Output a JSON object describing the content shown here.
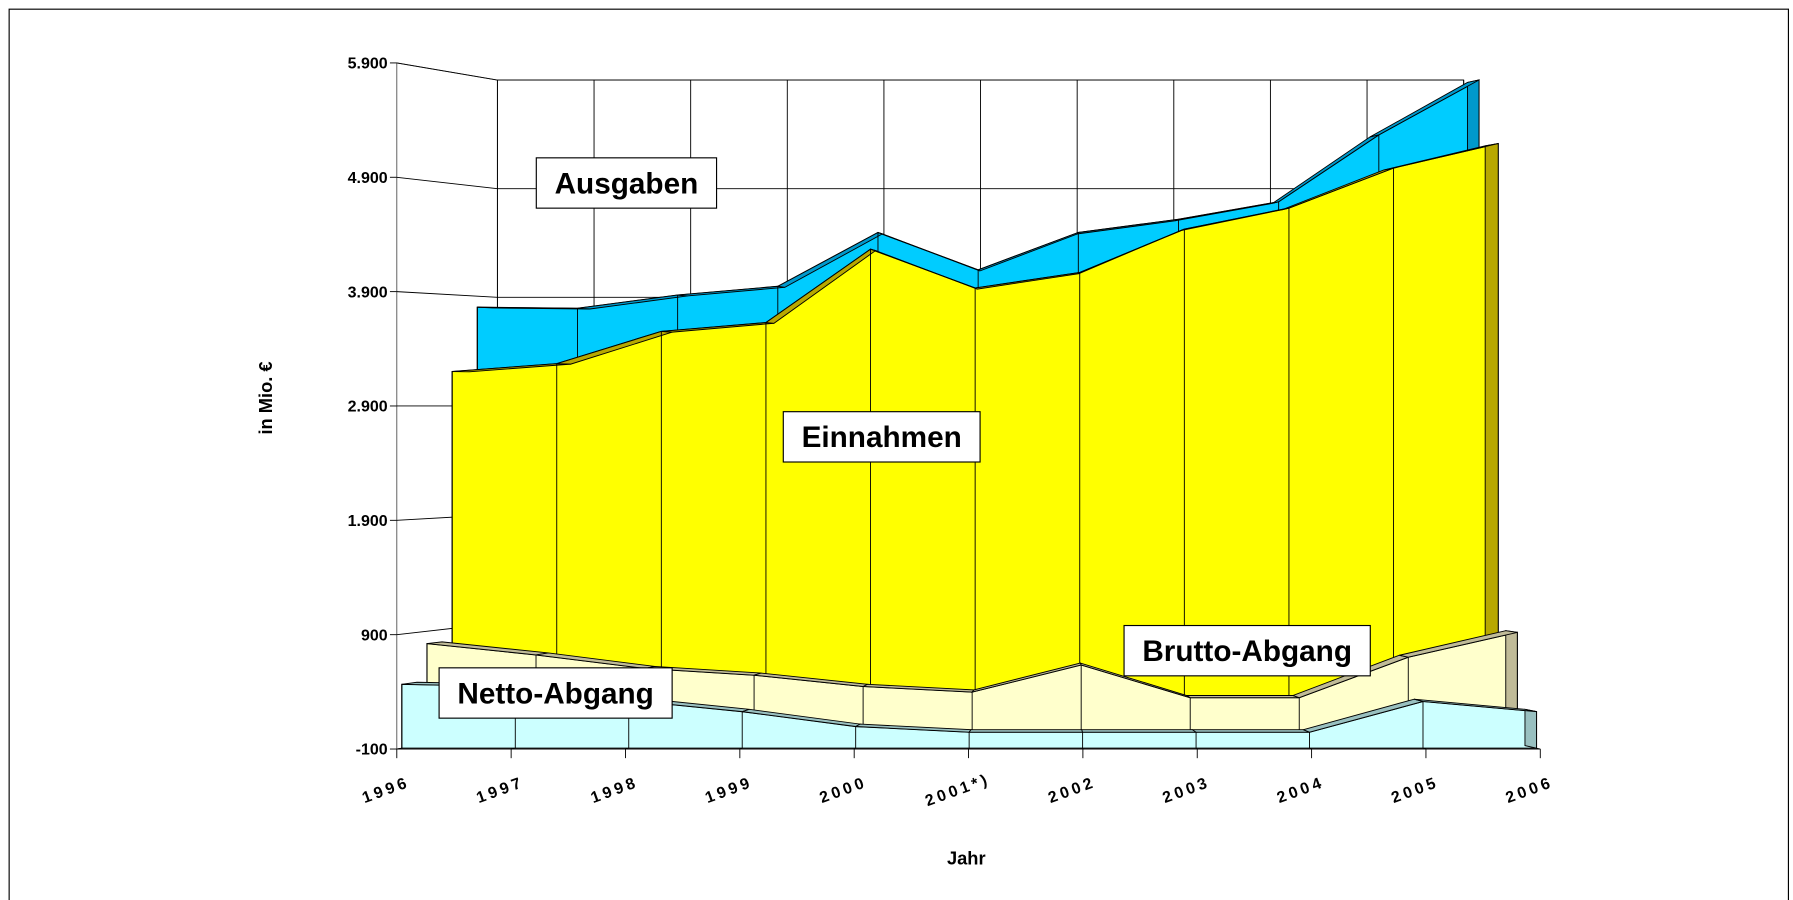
{
  "chart_data": {
    "type": "area3d",
    "categories": [
      "1996",
      "1997",
      "1998",
      "1999",
      "2000",
      "2001*)",
      "2002",
      "2003",
      "2004",
      "2005",
      "2006"
    ],
    "series": [
      {
        "name": "Ausgaben",
        "color": "#00ccff",
        "values": [
          3800,
          3790,
          3910,
          3990,
          4480,
          4140,
          4480,
          4600,
          4760,
          5370,
          5870
        ]
      },
      {
        "name": "Einnahmen",
        "color": "#ffff00",
        "values": [
          3210,
          3280,
          3570,
          3650,
          4310,
          3960,
          4100,
          4490,
          4680,
          5040,
          5260
        ]
      },
      {
        "name": "Brutto-Abgang",
        "color": "#ffffcc",
        "values": [
          790,
          690,
          570,
          510,
          410,
          360,
          600,
          310,
          310,
          670,
          890
        ]
      },
      {
        "name": "Netto-Abgang",
        "color": "#ccffff",
        "values": [
          460,
          440,
          320,
          220,
          90,
          40,
          40,
          40,
          40,
          310,
          220
        ]
      }
    ],
    "ylim": [
      -100,
      5900
    ],
    "yticks": [
      {
        "value": -100,
        "label": "-100"
      },
      {
        "value": 900,
        "label": "900"
      },
      {
        "value": 1900,
        "label": "1.900"
      },
      {
        "value": 2900,
        "label": "2.900"
      },
      {
        "value": 3900,
        "label": "3.900"
      },
      {
        "value": 4900,
        "label": "4.900"
      },
      {
        "value": 5900,
        "label": "5.900"
      }
    ],
    "ylabel": "in Mio. €",
    "xlabel": "Jahr",
    "grid": true
  }
}
